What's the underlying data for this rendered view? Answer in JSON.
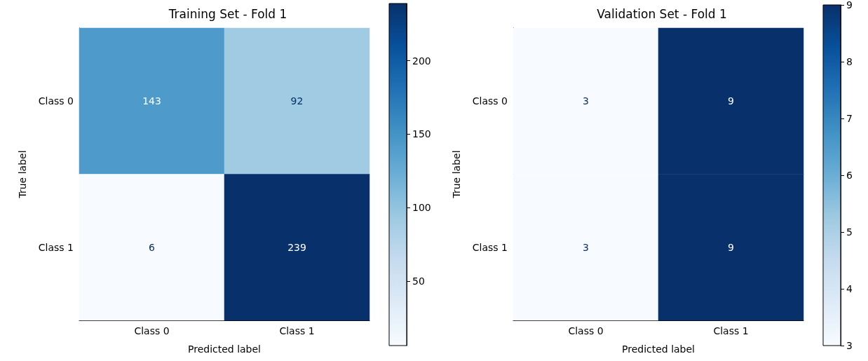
{
  "chart_data": [
    {
      "type": "heatmap",
      "title": "Training Set - Fold 1",
      "xlabel": "Predicted label",
      "ylabel": "True label",
      "categories": [
        "Class 0",
        "Class 1"
      ],
      "y_categories": [
        "Class 0",
        "Class 1"
      ],
      "cells": [
        [
          143,
          92
        ],
        [
          6,
          239
        ]
      ],
      "clim": [
        6,
        239
      ],
      "cticks": [
        50,
        100,
        150,
        200
      ],
      "data_labels": true
    },
    {
      "type": "heatmap",
      "title": "Validation Set - Fold 1",
      "xlabel": "Predicted label",
      "ylabel": "True label",
      "categories": [
        "Class 0",
        "Class 1"
      ],
      "y_categories": [
        "Class 0",
        "Class 1"
      ],
      "cells": [
        [
          3,
          9
        ],
        [
          3,
          9
        ]
      ],
      "clim": [
        3,
        9
      ],
      "cticks": [
        3,
        4,
        5,
        6,
        7,
        8,
        9
      ],
      "data_labels": true
    }
  ]
}
